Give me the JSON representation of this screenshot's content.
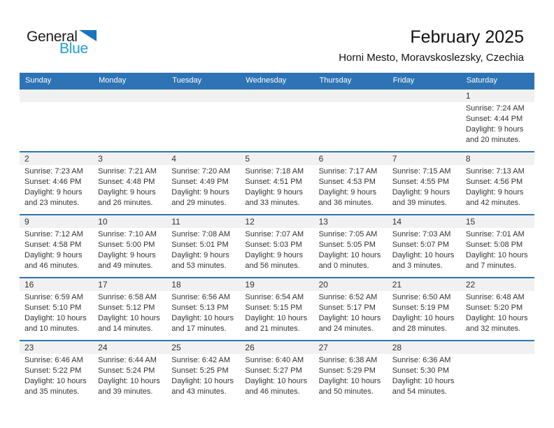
{
  "logo": {
    "general": "General",
    "blue": "Blue"
  },
  "header": {
    "month_title": "February 2025",
    "location": "Horni Mesto, Moravskoslezsky, Czechia"
  },
  "colors": {
    "header_bar": "#2e74b4",
    "row_border": "#2e74b4",
    "number_band": "#f1f1f1",
    "day_text": "#333333",
    "logo_blue_text": "#1e9bd7",
    "logo_triangle": "#1a75bc"
  },
  "calendar": {
    "day_headers": [
      "Sunday",
      "Monday",
      "Tuesday",
      "Wednesday",
      "Thursday",
      "Friday",
      "Saturday"
    ],
    "weeks": [
      [
        null,
        null,
        null,
        null,
        null,
        null,
        {
          "day": "1",
          "sunrise": "Sunrise: 7:24 AM",
          "sunset": "Sunset: 4:44 PM",
          "daylight": "Daylight: 9 hours and 20 minutes."
        }
      ],
      [
        {
          "day": "2",
          "sunrise": "Sunrise: 7:23 AM",
          "sunset": "Sunset: 4:46 PM",
          "daylight": "Daylight: 9 hours and 23 minutes."
        },
        {
          "day": "3",
          "sunrise": "Sunrise: 7:21 AM",
          "sunset": "Sunset: 4:48 PM",
          "daylight": "Daylight: 9 hours and 26 minutes."
        },
        {
          "day": "4",
          "sunrise": "Sunrise: 7:20 AM",
          "sunset": "Sunset: 4:49 PM",
          "daylight": "Daylight: 9 hours and 29 minutes."
        },
        {
          "day": "5",
          "sunrise": "Sunrise: 7:18 AM",
          "sunset": "Sunset: 4:51 PM",
          "daylight": "Daylight: 9 hours and 33 minutes."
        },
        {
          "day": "6",
          "sunrise": "Sunrise: 7:17 AM",
          "sunset": "Sunset: 4:53 PM",
          "daylight": "Daylight: 9 hours and 36 minutes."
        },
        {
          "day": "7",
          "sunrise": "Sunrise: 7:15 AM",
          "sunset": "Sunset: 4:55 PM",
          "daylight": "Daylight: 9 hours and 39 minutes."
        },
        {
          "day": "8",
          "sunrise": "Sunrise: 7:13 AM",
          "sunset": "Sunset: 4:56 PM",
          "daylight": "Daylight: 9 hours and 42 minutes."
        }
      ],
      [
        {
          "day": "9",
          "sunrise": "Sunrise: 7:12 AM",
          "sunset": "Sunset: 4:58 PM",
          "daylight": "Daylight: 9 hours and 46 minutes."
        },
        {
          "day": "10",
          "sunrise": "Sunrise: 7:10 AM",
          "sunset": "Sunset: 5:00 PM",
          "daylight": "Daylight: 9 hours and 49 minutes."
        },
        {
          "day": "11",
          "sunrise": "Sunrise: 7:08 AM",
          "sunset": "Sunset: 5:01 PM",
          "daylight": "Daylight: 9 hours and 53 minutes."
        },
        {
          "day": "12",
          "sunrise": "Sunrise: 7:07 AM",
          "sunset": "Sunset: 5:03 PM",
          "daylight": "Daylight: 9 hours and 56 minutes."
        },
        {
          "day": "13",
          "sunrise": "Sunrise: 7:05 AM",
          "sunset": "Sunset: 5:05 PM",
          "daylight": "Daylight: 10 hours and 0 minutes."
        },
        {
          "day": "14",
          "sunrise": "Sunrise: 7:03 AM",
          "sunset": "Sunset: 5:07 PM",
          "daylight": "Daylight: 10 hours and 3 minutes."
        },
        {
          "day": "15",
          "sunrise": "Sunrise: 7:01 AM",
          "sunset": "Sunset: 5:08 PM",
          "daylight": "Daylight: 10 hours and 7 minutes."
        }
      ],
      [
        {
          "day": "16",
          "sunrise": "Sunrise: 6:59 AM",
          "sunset": "Sunset: 5:10 PM",
          "daylight": "Daylight: 10 hours and 10 minutes."
        },
        {
          "day": "17",
          "sunrise": "Sunrise: 6:58 AM",
          "sunset": "Sunset: 5:12 PM",
          "daylight": "Daylight: 10 hours and 14 minutes."
        },
        {
          "day": "18",
          "sunrise": "Sunrise: 6:56 AM",
          "sunset": "Sunset: 5:13 PM",
          "daylight": "Daylight: 10 hours and 17 minutes."
        },
        {
          "day": "19",
          "sunrise": "Sunrise: 6:54 AM",
          "sunset": "Sunset: 5:15 PM",
          "daylight": "Daylight: 10 hours and 21 minutes."
        },
        {
          "day": "20",
          "sunrise": "Sunrise: 6:52 AM",
          "sunset": "Sunset: 5:17 PM",
          "daylight": "Daylight: 10 hours and 24 minutes."
        },
        {
          "day": "21",
          "sunrise": "Sunrise: 6:50 AM",
          "sunset": "Sunset: 5:19 PM",
          "daylight": "Daylight: 10 hours and 28 minutes."
        },
        {
          "day": "22",
          "sunrise": "Sunrise: 6:48 AM",
          "sunset": "Sunset: 5:20 PM",
          "daylight": "Daylight: 10 hours and 32 minutes."
        }
      ],
      [
        {
          "day": "23",
          "sunrise": "Sunrise: 6:46 AM",
          "sunset": "Sunset: 5:22 PM",
          "daylight": "Daylight: 10 hours and 35 minutes."
        },
        {
          "day": "24",
          "sunrise": "Sunrise: 6:44 AM",
          "sunset": "Sunset: 5:24 PM",
          "daylight": "Daylight: 10 hours and 39 minutes."
        },
        {
          "day": "25",
          "sunrise": "Sunrise: 6:42 AM",
          "sunset": "Sunset: 5:25 PM",
          "daylight": "Daylight: 10 hours and 43 minutes."
        },
        {
          "day": "26",
          "sunrise": "Sunrise: 6:40 AM",
          "sunset": "Sunset: 5:27 PM",
          "daylight": "Daylight: 10 hours and 46 minutes."
        },
        {
          "day": "27",
          "sunrise": "Sunrise: 6:38 AM",
          "sunset": "Sunset: 5:29 PM",
          "daylight": "Daylight: 10 hours and 50 minutes."
        },
        {
          "day": "28",
          "sunrise": "Sunrise: 6:36 AM",
          "sunset": "Sunset: 5:30 PM",
          "daylight": "Daylight: 10 hours and 54 minutes."
        },
        null
      ]
    ]
  }
}
